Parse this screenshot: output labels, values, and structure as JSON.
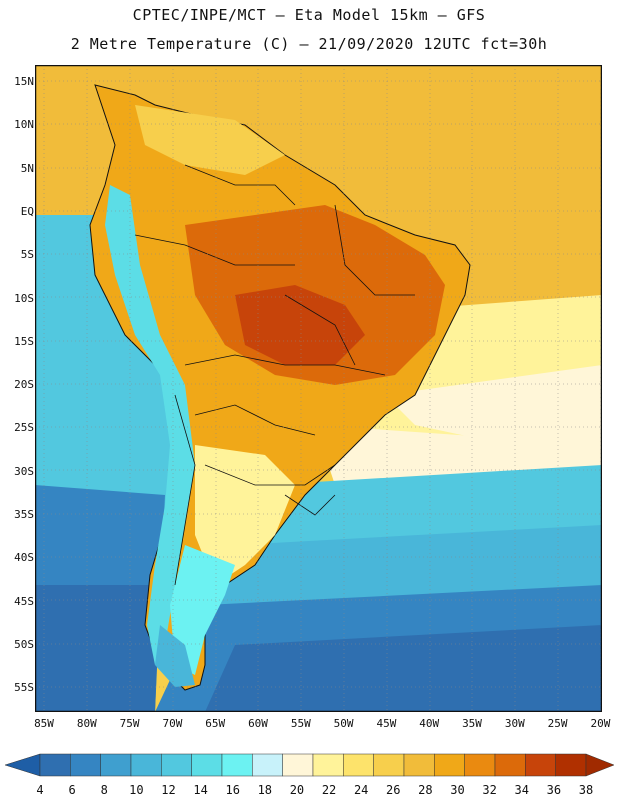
{
  "header": {
    "title_line1": "CPTEC/INPE/MCT –  Eta Model 15km – GFS",
    "title_line2": "2 Metre Temperature (C) – 21/09/2020 12UTC fct=30h"
  },
  "axes": {
    "lat_labels": [
      "15N",
      "10N",
      "5N",
      "EQ",
      "5S",
      "10S",
      "15S",
      "20S",
      "25S",
      "30S",
      "35S",
      "40S",
      "45S",
      "50S",
      "55S"
    ],
    "lon_labels": [
      "85W",
      "80W",
      "75W",
      "70W",
      "65W",
      "60W",
      "55W",
      "50W",
      "45W",
      "40W",
      "35W",
      "30W",
      "25W",
      "20W"
    ]
  },
  "colorbar": {
    "ticks": [
      "4",
      "6",
      "8",
      "10",
      "12",
      "14",
      "16",
      "18",
      "20",
      "22",
      "24",
      "26",
      "28",
      "30",
      "32",
      "34",
      "36",
      "38"
    ],
    "colors": [
      "#2f6fb0",
      "#3585c2",
      "#3f9fcf",
      "#49b6d9",
      "#52c8df",
      "#5cdde6",
      "#6cf2f2",
      "#c8f2fa",
      "#fff6d8",
      "#fff39a",
      "#fde36b",
      "#f7cf4c",
      "#f1bc3a",
      "#f0a818",
      "#ea8a10",
      "#dc6a0a",
      "#c7440a",
      "#b03000"
    ],
    "left_arrow_color": "#1e5ea6",
    "right_arrow_color": "#a02a00"
  },
  "map": {
    "ocean_colors": {
      "pacific_north": "#49b6d9",
      "pacific_south": "#2f6fb0",
      "atlantic_warm": "#f1bc3a",
      "atlantic_mid": "#fff6d8",
      "atlantic_cold": "#3585c2"
    },
    "land_colors": {
      "amazon": "#dc6a0a",
      "interior": "#f0a818",
      "andes": "#5cdde6",
      "patagonia": "#6cf2f2",
      "south": "#fff39a"
    }
  }
}
